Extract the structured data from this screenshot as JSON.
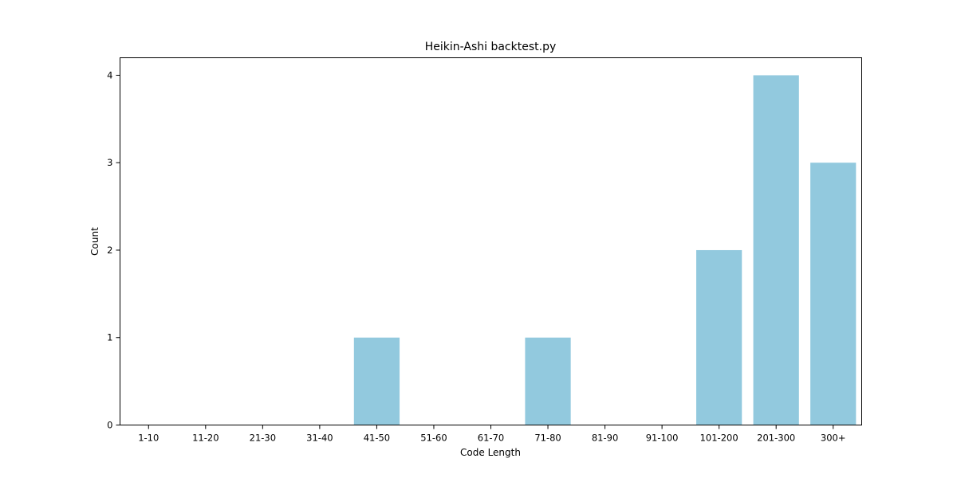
{
  "chart_data": {
    "type": "bar",
    "title": "Heikin-Ashi backtest.py",
    "xlabel": "Code Length",
    "ylabel": "Count",
    "categories": [
      "1-10",
      "11-20",
      "21-30",
      "31-40",
      "41-50",
      "51-60",
      "61-70",
      "71-80",
      "81-90",
      "91-100",
      "101-200",
      "201-300",
      "300+"
    ],
    "values": [
      0,
      0,
      0,
      0,
      1,
      0,
      0,
      1,
      0,
      0,
      2,
      4,
      3
    ],
    "ylim": [
      0,
      4.2
    ],
    "yticks": [
      0,
      1,
      2,
      3,
      4
    ],
    "bar_color": "#92c9de",
    "grid": false,
    "legend": "none"
  }
}
